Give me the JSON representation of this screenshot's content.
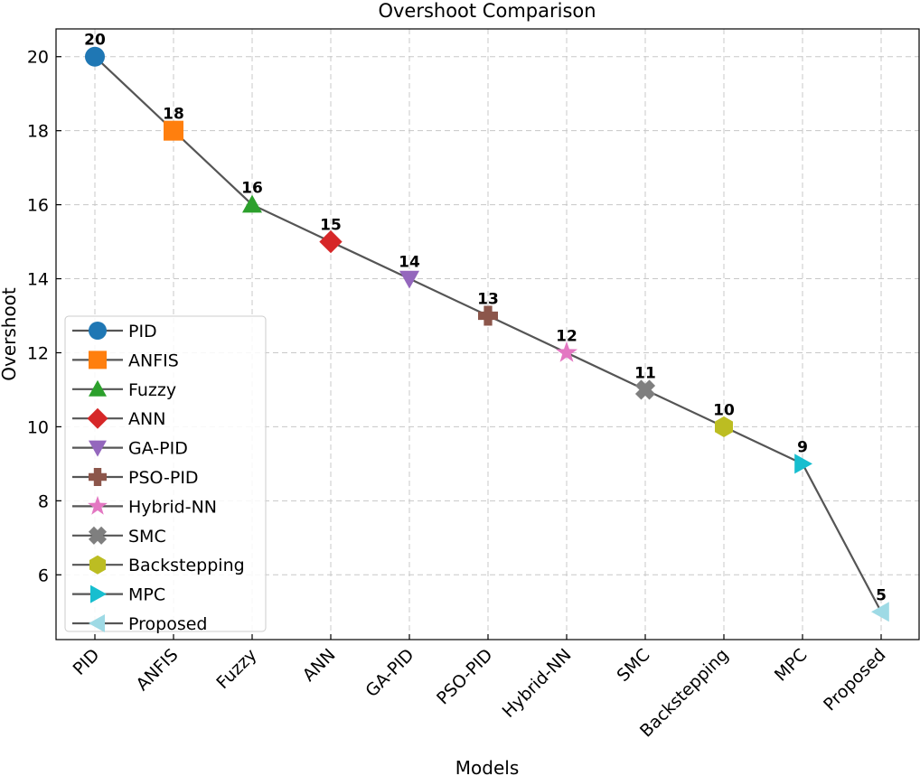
{
  "chart_data": {
    "type": "line",
    "title": "Overshoot Comparison",
    "xlabel": "Models",
    "ylabel": "Overshoot",
    "categories": [
      "PID",
      "ANFIS",
      "Fuzzy",
      "ANN",
      "GA-PID",
      "PSO-PID",
      "Hybrid-NN",
      "SMC",
      "Backstepping",
      "MPC",
      "Proposed"
    ],
    "values": [
      20,
      18,
      16,
      15,
      14,
      13,
      12,
      11,
      10,
      9,
      5
    ],
    "data_labels": [
      "20",
      "18",
      "16",
      "15",
      "14",
      "13",
      "12",
      "11",
      "10",
      "9",
      "5"
    ],
    "yticks": [
      6,
      8,
      10,
      12,
      14,
      16,
      18,
      20
    ],
    "ytick_labels": [
      "6",
      "8",
      "10",
      "12",
      "14",
      "16",
      "18",
      "20"
    ],
    "ylim": [
      4.25,
      20.75
    ],
    "grid": true,
    "legend_position": "lower-left",
    "line_color": "#555555",
    "series_styles": [
      {
        "name": "PID",
        "marker": "circle",
        "color": "#1f77b4"
      },
      {
        "name": "ANFIS",
        "marker": "square",
        "color": "#ff7f0e"
      },
      {
        "name": "Fuzzy",
        "marker": "triangle-up",
        "color": "#2ca02c"
      },
      {
        "name": "ANN",
        "marker": "diamond",
        "color": "#d62728"
      },
      {
        "name": "GA-PID",
        "marker": "triangle-down",
        "color": "#9467bd"
      },
      {
        "name": "PSO-PID",
        "marker": "plus",
        "color": "#8c564b"
      },
      {
        "name": "Hybrid-NN",
        "marker": "star",
        "color": "#e377c2"
      },
      {
        "name": "SMC",
        "marker": "x",
        "color": "#7f7f7f"
      },
      {
        "name": "Backstepping",
        "marker": "hexagon",
        "color": "#bcbd22"
      },
      {
        "name": "MPC",
        "marker": "triangle-right",
        "color": "#17becf"
      },
      {
        "name": "Proposed",
        "marker": "triangle-left",
        "color": "#9edae5"
      }
    ]
  }
}
